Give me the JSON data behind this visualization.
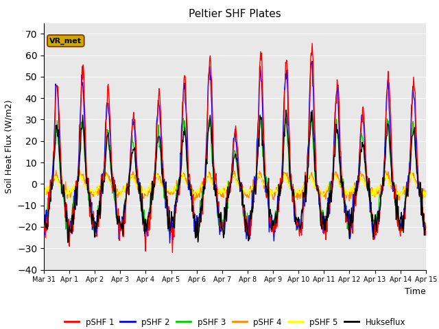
{
  "title": "Peltier SHF Plates",
  "xlabel": "Time",
  "ylabel": "Soil Heat Flux (W/m2)",
  "ylim": [
    -40,
    75
  ],
  "yticks": [
    -40,
    -30,
    -20,
    -10,
    0,
    10,
    20,
    30,
    40,
    50,
    60,
    70
  ],
  "xtick_labels": [
    "Mar 31",
    "Apr 1",
    "Apr 2",
    "Apr 3",
    "Apr 4",
    "Apr 5",
    "Apr 6",
    "Apr 7",
    "Apr 8",
    "Apr 9",
    "Apr 10",
    "Apr 11",
    "Apr 12",
    "Apr 13",
    "Apr 14",
    "Apr 15"
  ],
  "fig_bg_color": "#ffffff",
  "plot_bg_color": "#e8e8e8",
  "annotation_text": "VR_met",
  "annotation_bg": "#ccaa00",
  "annotation_border": "#8B4513",
  "line_colors": {
    "pSHF 1": "#ff0000",
    "pSHF 2": "#0000ff",
    "pSHF 3": "#00cc00",
    "pSHF 4": "#ff8800",
    "pSHF 5": "#ffff00",
    "Hukseflux": "#000000"
  },
  "legend_entries": [
    "pSHF 1",
    "pSHF 2",
    "pSHF 3",
    "pSHF 4",
    "pSHF 5",
    "Hukseflux"
  ]
}
